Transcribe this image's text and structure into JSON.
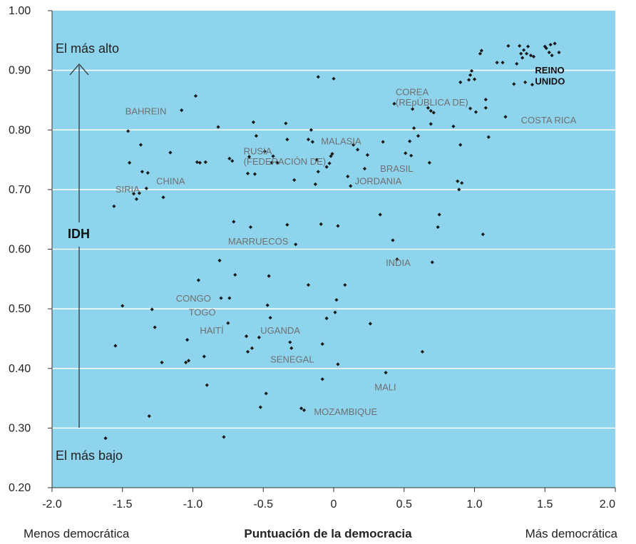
{
  "chart_data": {
    "type": "scatter",
    "title": "",
    "xlabel": "Puntuación de la democracia",
    "ylabel": "IDH",
    "xlim": [
      -2.0,
      2.0
    ],
    "ylim": [
      0.2,
      1.0
    ],
    "x_ticks": [
      "-2.0",
      "-1.5",
      "-1.0",
      "-0.5",
      "0",
      "0.5",
      "1.0",
      "1.5",
      "2.0"
    ],
    "y_ticks": [
      "0.20",
      "0.30",
      "0.40",
      "0.50",
      "0.60",
      "0.70",
      "0.80",
      "0.90",
      "1.00"
    ],
    "x_left_caption": "Menos democrática",
    "x_right_caption": "Más democrática",
    "y_top_caption": "El más alto",
    "y_bottom_caption": "El más bajo",
    "background_color": "#8fd4ed",
    "grid": true,
    "points": [
      [
        -1.62,
        0.283
      ],
      [
        -1.56,
        0.672
      ],
      [
        -1.55,
        0.438
      ],
      [
        -1.5,
        0.505
      ],
      [
        -1.46,
        0.798
      ],
      [
        -1.45,
        0.745
      ],
      [
        -1.42,
        0.693
      ],
      [
        -1.4,
        0.684
      ],
      [
        -1.38,
        0.694
      ],
      [
        -1.37,
        0.775
      ],
      [
        -1.36,
        0.73
      ],
      [
        -1.33,
        0.702
      ],
      [
        -1.32,
        0.728
      ],
      [
        -1.31,
        0.32
      ],
      [
        -1.29,
        0.499
      ],
      [
        -1.27,
        0.469
      ],
      [
        -1.22,
        0.41
      ],
      [
        -1.21,
        0.687
      ],
      [
        -1.16,
        0.762
      ],
      [
        -1.08,
        0.833
      ],
      [
        -1.05,
        0.41
      ],
      [
        -1.04,
        0.448
      ],
      [
        -1.03,
        0.413
      ],
      [
        -0.98,
        0.857
      ],
      [
        -0.97,
        0.746
      ],
      [
        -0.96,
        0.548
      ],
      [
        -0.95,
        0.745
      ],
      [
        -0.92,
        0.42
      ],
      [
        -0.91,
        0.746
      ],
      [
        -0.9,
        0.372
      ],
      [
        -0.82,
        0.805
      ],
      [
        -0.81,
        0.581
      ],
      [
        -0.8,
        0.518
      ],
      [
        -0.78,
        0.285
      ],
      [
        -0.75,
        0.476
      ],
      [
        -0.74,
        0.752
      ],
      [
        -0.74,
        0.518
      ],
      [
        -0.72,
        0.748
      ],
      [
        -0.71,
        0.646
      ],
      [
        -0.7,
        0.557
      ],
      [
        -0.62,
        0.454
      ],
      [
        -0.61,
        0.428
      ],
      [
        -0.61,
        0.727
      ],
      [
        -0.6,
        0.755
      ],
      [
        -0.59,
        0.637
      ],
      [
        -0.58,
        0.434
      ],
      [
        -0.57,
        0.813
      ],
      [
        -0.56,
        0.726
      ],
      [
        -0.55,
        0.79
      ],
      [
        -0.53,
        0.452
      ],
      [
        -0.52,
        0.335
      ],
      [
        -0.49,
        0.764
      ],
      [
        -0.48,
        0.358
      ],
      [
        -0.47,
        0.506
      ],
      [
        -0.46,
        0.555
      ],
      [
        -0.45,
        0.485
      ],
      [
        -0.44,
        0.745
      ],
      [
        -0.43,
        0.756
      ],
      [
        -0.4,
        0.745
      ],
      [
        -0.34,
        0.811
      ],
      [
        -0.33,
        0.784
      ],
      [
        -0.33,
        0.641
      ],
      [
        -0.31,
        0.444
      ],
      [
        -0.3,
        0.434
      ],
      [
        -0.28,
        0.716
      ],
      [
        -0.27,
        0.608
      ],
      [
        -0.23,
        0.333
      ],
      [
        -0.21,
        0.33
      ],
      [
        -0.18,
        0.784
      ],
      [
        -0.18,
        0.54
      ],
      [
        -0.16,
        0.8
      ],
      [
        -0.15,
        0.78
      ],
      [
        -0.13,
        0.709
      ],
      [
        -0.12,
        0.75
      ],
      [
        -0.11,
        0.889
      ],
      [
        -0.11,
        0.73
      ],
      [
        -0.09,
        0.642
      ],
      [
        -0.08,
        0.441
      ],
      [
        -0.08,
        0.382
      ],
      [
        -0.05,
        0.484
      ],
      [
        -0.05,
        0.738
      ],
      [
        -0.03,
        0.744
      ],
      [
        -0.02,
        0.756
      ],
      [
        -0.01,
        0.76
      ],
      [
        0.0,
        0.886
      ],
      [
        0.01,
        0.494
      ],
      [
        0.02,
        0.515
      ],
      [
        0.03,
        0.407
      ],
      [
        0.03,
        0.639
      ],
      [
        0.08,
        0.54
      ],
      [
        0.1,
        0.722
      ],
      [
        0.12,
        0.706
      ],
      [
        0.14,
        0.775
      ],
      [
        0.17,
        0.767
      ],
      [
        0.22,
        0.735
      ],
      [
        0.24,
        0.758
      ],
      [
        0.26,
        0.475
      ],
      [
        0.33,
        0.658
      ],
      [
        0.35,
        0.78
      ],
      [
        0.37,
        0.393
      ],
      [
        0.42,
        0.615
      ],
      [
        0.43,
        0.844
      ],
      [
        0.45,
        0.583
      ],
      [
        0.51,
        0.761
      ],
      [
        0.54,
        0.781
      ],
      [
        0.55,
        0.757
      ],
      [
        0.56,
        0.835
      ],
      [
        0.57,
        0.803
      ],
      [
        0.6,
        0.79
      ],
      [
        0.63,
        0.428
      ],
      [
        0.67,
        0.837
      ],
      [
        0.68,
        0.745
      ],
      [
        0.69,
        0.81
      ],
      [
        0.69,
        0.832
      ],
      [
        0.7,
        0.578
      ],
      [
        0.71,
        0.829
      ],
      [
        0.74,
        0.637
      ],
      [
        0.75,
        0.658
      ],
      [
        0.85,
        0.806
      ],
      [
        0.88,
        0.714
      ],
      [
        0.89,
        0.7
      ],
      [
        0.9,
        0.88
      ],
      [
        0.9,
        0.775
      ],
      [
        0.91,
        0.711
      ],
      [
        0.96,
        0.884
      ],
      [
        0.97,
        0.836
      ],
      [
        0.97,
        0.892
      ],
      [
        0.98,
        0.899
      ],
      [
        1.0,
        0.885
      ],
      [
        1.01,
        0.83
      ],
      [
        1.04,
        0.928
      ],
      [
        1.05,
        0.933
      ],
      [
        1.06,
        0.625
      ],
      [
        1.08,
        0.837
      ],
      [
        1.08,
        0.851
      ],
      [
        1.1,
        0.788
      ],
      [
        1.16,
        0.913
      ],
      [
        1.2,
        0.913
      ],
      [
        1.22,
        0.822
      ],
      [
        1.24,
        0.941
      ],
      [
        1.28,
        0.877
      ],
      [
        1.3,
        0.911
      ],
      [
        1.32,
        0.941
      ],
      [
        1.33,
        0.928
      ],
      [
        1.34,
        0.921
      ],
      [
        1.35,
        0.934
      ],
      [
        1.36,
        0.88
      ],
      [
        1.37,
        0.928
      ],
      [
        1.38,
        0.94
      ],
      [
        1.4,
        0.925
      ],
      [
        1.41,
        0.876
      ],
      [
        1.42,
        0.923
      ],
      [
        1.5,
        0.94
      ],
      [
        1.51,
        0.937
      ],
      [
        1.53,
        0.93
      ],
      [
        1.54,
        0.943
      ],
      [
        1.55,
        0.925
      ],
      [
        1.57,
        0.945
      ],
      [
        1.6,
        0.93
      ]
    ],
    "labels": [
      {
        "text": "BAHREIN",
        "x": -1.48,
        "y": 0.826,
        "bold": false
      },
      {
        "text": "SIRIA",
        "x": -1.55,
        "y": 0.695,
        "bold": false
      },
      {
        "text": "CHINA",
        "x": -1.26,
        "y": 0.709,
        "bold": false
      },
      {
        "text": "RUSIA",
        "x": -0.64,
        "y": 0.759,
        "bold": false
      },
      {
        "text": "(FEDERACIÓN DE)",
        "x": -0.64,
        "y": 0.742,
        "bold": false
      },
      {
        "text": "MALASIA",
        "x": -0.09,
        "y": 0.776,
        "bold": false
      },
      {
        "text": "BRASIL",
        "x": 0.33,
        "y": 0.73,
        "bold": false
      },
      {
        "text": "JORDANIA",
        "x": 0.15,
        "y": 0.709,
        "bold": false
      },
      {
        "text": "COREA",
        "x": 0.44,
        "y": 0.858,
        "bold": false
      },
      {
        "text": "(REpÚBLICA DE)",
        "x": 0.44,
        "y": 0.841,
        "bold": false
      },
      {
        "text": "COSTA RICA",
        "x": 1.33,
        "y": 0.811,
        "bold": false
      },
      {
        "text": "REINO",
        "x": 1.43,
        "y": 0.895,
        "bold": true
      },
      {
        "text": "UNIDO",
        "x": 1.43,
        "y": 0.876,
        "bold": true
      },
      {
        "text": "MARRUECOS",
        "x": -0.75,
        "y": 0.608,
        "bold": false
      },
      {
        "text": "INDIA",
        "x": 0.37,
        "y": 0.572,
        "bold": false
      },
      {
        "text": "CONGO",
        "x": -1.12,
        "y": 0.512,
        "bold": false
      },
      {
        "text": "TOGO",
        "x": -1.03,
        "y": 0.489,
        "bold": false
      },
      {
        "text": "HAITÍ",
        "x": -0.95,
        "y": 0.458,
        "bold": false
      },
      {
        "text": "UGANDA",
        "x": -0.52,
        "y": 0.458,
        "bold": false
      },
      {
        "text": "SENEGAL",
        "x": -0.45,
        "y": 0.41,
        "bold": false
      },
      {
        "text": "MALI",
        "x": 0.29,
        "y": 0.363,
        "bold": false
      },
      {
        "text": "MOZAMBIQUE",
        "x": -0.14,
        "y": 0.322,
        "bold": false
      }
    ]
  }
}
